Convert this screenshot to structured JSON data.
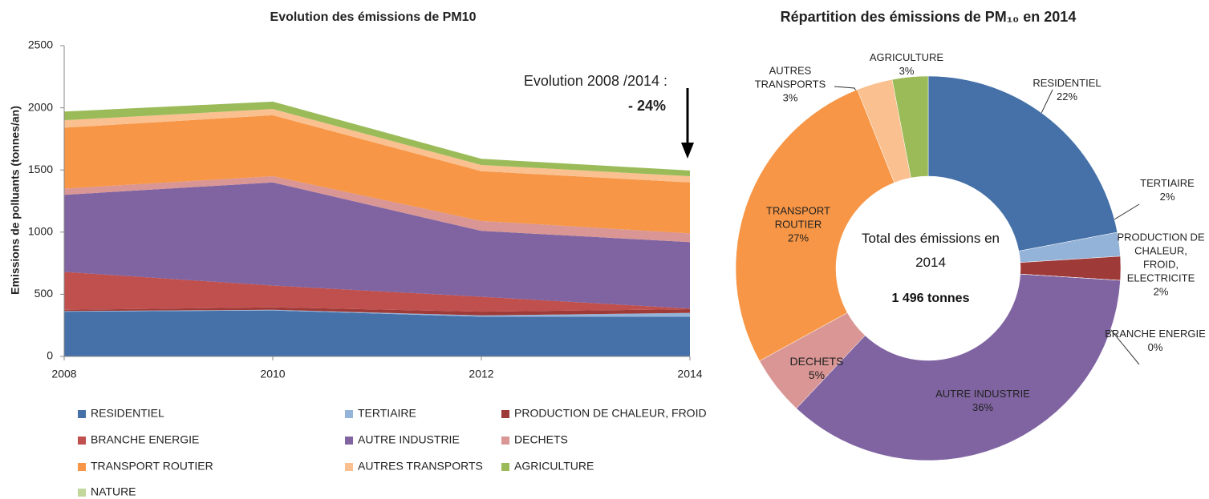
{
  "chart_data": [
    {
      "type": "area",
      "title": "Evolution des émissions de PM10",
      "y_label": "Emissions de polluants (tonnes/an)",
      "annotation": "Evolution 2008 /2014 :",
      "annotation_value": "- 24%",
      "x": [
        2008,
        2010,
        2012,
        2014
      ],
      "xlim": [
        2008,
        2014
      ],
      "xticks": [
        2008,
        2010,
        2012,
        2014
      ],
      "ylim": [
        0,
        2500
      ],
      "yticks": [
        0,
        500,
        1000,
        1500,
        2000,
        2500
      ],
      "stacked": true,
      "series": [
        {
          "name": "RESIDENTIEL",
          "color": "#4571a8",
          "values": [
            360,
            370,
            320,
            320
          ]
        },
        {
          "name": "TERTIAIRE",
          "color": "#94b3d9",
          "values": [
            5,
            5,
            10,
            30
          ]
        },
        {
          "name": "PRODUCTION DE CHALEUR, FROID",
          "color": "#9e3a38",
          "values": [
            10,
            20,
            30,
            30
          ]
        },
        {
          "name": "BRANCHE ENERGIE",
          "color": "#c0504d",
          "values": [
            305,
            175,
            120,
            5
          ]
        },
        {
          "name": "AUTRE INDUSTRIE",
          "color": "#8064a2",
          "values": [
            620,
            830,
            530,
            535
          ]
        },
        {
          "name": "DECHETS",
          "color": "#d99694",
          "values": [
            50,
            50,
            80,
            70
          ]
        },
        {
          "name": "TRANSPORT ROUTIER",
          "color": "#f79646",
          "values": [
            490,
            490,
            400,
            410
          ]
        },
        {
          "name": "AUTRES TRANSPORTS",
          "color": "#fac090",
          "values": [
            60,
            50,
            50,
            50
          ]
        },
        {
          "name": "AGRICULTURE",
          "color": "#9bbb59",
          "values": [
            70,
            60,
            50,
            46
          ]
        },
        {
          "name": "NATURE",
          "color": "#c3d69b",
          "values": [
            0,
            0,
            0,
            0
          ]
        }
      ]
    },
    {
      "type": "pie",
      "title": "Répartition des émissions de PM₁₀ en 2014",
      "center_label": "Total des émissions en 2014",
      "center_value": "1 496 tonnes",
      "categories": [
        "RESIDENTIEL",
        "TERTIAIRE",
        "PRODUCTION DE CHALEUR, FROID, ELECTRICITE",
        "BRANCHE ENERGIE",
        "AUTRE INDUSTRIE",
        "DECHETS",
        "TRANSPORT ROUTIER",
        "AUTRES TRANSPORTS",
        "AGRICULTURE"
      ],
      "values": [
        22,
        2,
        2,
        0,
        36,
        5,
        27,
        3,
        3
      ],
      "value_labels": [
        "22%",
        "2%",
        "2%",
        "0%",
        "36%",
        "5%",
        "27%",
        "3%",
        "3%"
      ],
      "colors": [
        "#4571a8",
        "#94b3d9",
        "#9e3a38",
        "#c0504d",
        "#8064a2",
        "#d99694",
        "#f79646",
        "#fac090",
        "#9bbb59"
      ]
    }
  ]
}
